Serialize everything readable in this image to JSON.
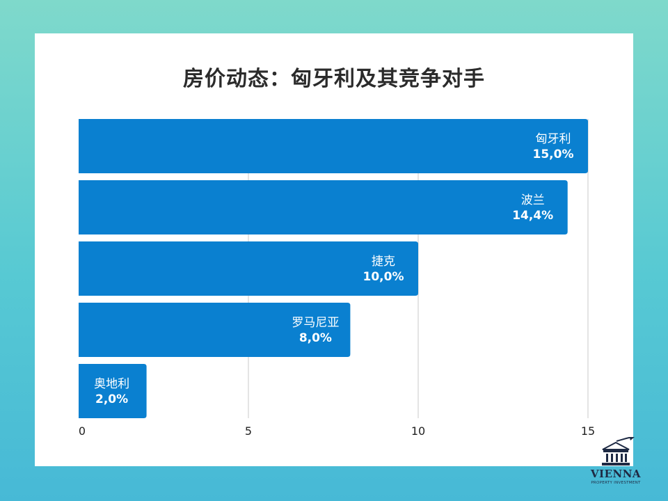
{
  "chart_data": {
    "type": "bar",
    "orientation": "horizontal",
    "title": "房价动态：匈牙利及其竞争对手",
    "categories": [
      "匈牙利",
      "波兰",
      "捷克",
      "罗马尼亚",
      "奥地利"
    ],
    "values": [
      15.0,
      14.4,
      10.0,
      8.0,
      2.0
    ],
    "value_labels": [
      "15,0%",
      "14,4%",
      "10,0%",
      "8,0%",
      "2,0%"
    ],
    "xlim": [
      0,
      15
    ],
    "xticks": [
      "0",
      "5",
      "10",
      "15"
    ],
    "grid": true,
    "bar_color": "#0a80d0",
    "xlabel": "",
    "ylabel": ""
  },
  "logo": {
    "name": "VIENNA",
    "subtitle": "PROPERTY INVESTMENT"
  }
}
